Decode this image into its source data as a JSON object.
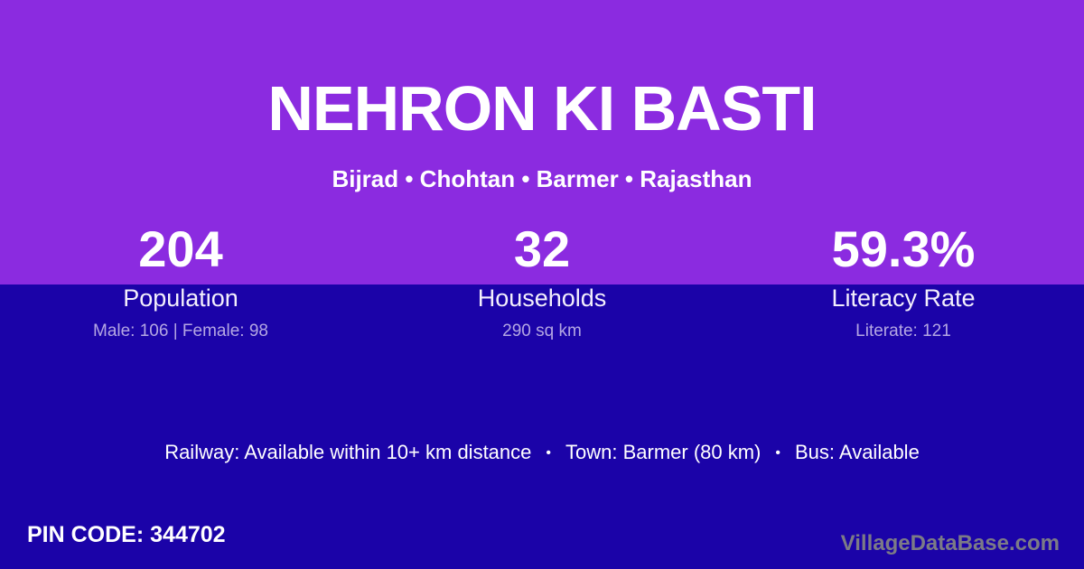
{
  "colors": {
    "top_background": "#8B2BE0",
    "bottom_background": "#1B03A8",
    "primary_text": "#FFFFFF",
    "muted_text": "#B4A7E3",
    "watermark_text": "#7C7B86"
  },
  "header": {
    "title": "NEHRON KI BASTI",
    "breadcrumb": "Bijrad • Chohtan • Barmer • Rajasthan"
  },
  "stats": [
    {
      "value": "204",
      "label": "Population",
      "detail": "Male: 106 | Female: 98"
    },
    {
      "value": "32",
      "label": "Households",
      "detail": "290 sq km"
    },
    {
      "value": "59.3%",
      "label": "Literacy Rate",
      "detail": "Literate: 121"
    }
  ],
  "transport": {
    "segments": [
      "Railway: Available within 10+ km distance",
      "Town: Barmer (80 km)",
      "Bus: Available"
    ],
    "separator": "•"
  },
  "footer": {
    "pin_label": "PIN CODE:",
    "pin_value": "344702",
    "watermark": "VillageDataBase.com"
  }
}
